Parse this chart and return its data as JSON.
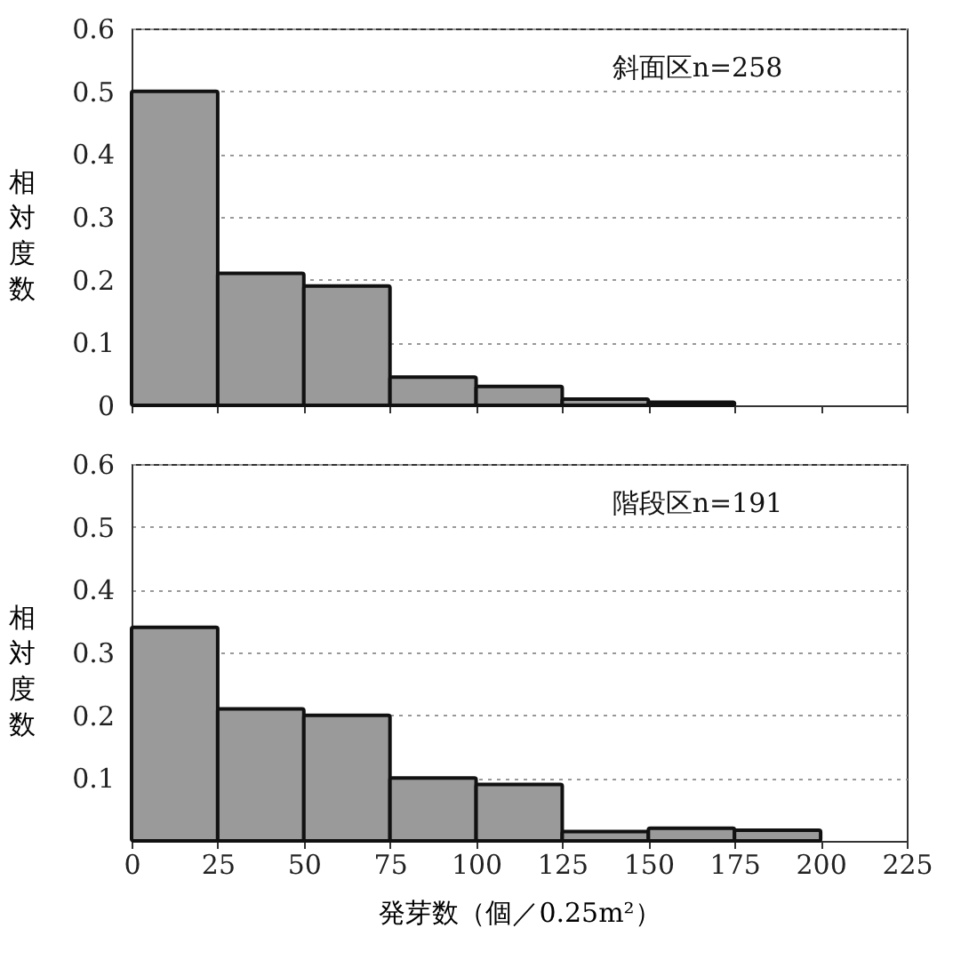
{
  "chart_data": [
    {
      "type": "histogram",
      "bins": [
        0,
        25,
        50,
        75,
        100,
        125,
        150,
        175
      ],
      "values": [
        0.5,
        0.21,
        0.19,
        0.045,
        0.03,
        0.01,
        0.005
      ],
      "color": "#9a9a9a",
      "ylabel": "相対度数",
      "annotations": [
        "斜面区n=258"
      ],
      "xlim": [
        0,
        225
      ],
      "xticks": [
        0,
        25,
        50,
        75,
        100,
        125,
        150,
        175,
        200,
        225
      ],
      "ylim": [
        0,
        0.6
      ],
      "yticks": [
        {
          "value": 0,
          "label": "0"
        },
        0.1,
        0.2,
        0.3,
        0.4,
        0.5,
        0.6
      ],
      "grid": "y",
      "tick_labels": "y"
    },
    {
      "type": "histogram",
      "bins": [
        0,
        25,
        50,
        75,
        100,
        125,
        150,
        175,
        200
      ],
      "values": [
        0.34,
        0.21,
        0.2,
        0.1,
        0.09,
        0.015,
        0.02,
        0.017
      ],
      "color": "#9a9a9a",
      "ylabel": "相対度数",
      "xlabel": "発芽数（個／0.25m²）",
      "annotations": [
        "階段区n=191"
      ],
      "xlim": [
        0,
        225
      ],
      "xticks": [
        0,
        25,
        50,
        75,
        100,
        125,
        150,
        175,
        200,
        225
      ],
      "ylim": [
        0,
        0.6
      ],
      "yticks": [
        0.1,
        0.2,
        0.3,
        0.4,
        0.5,
        0.6
      ],
      "grid": "y"
    }
  ]
}
